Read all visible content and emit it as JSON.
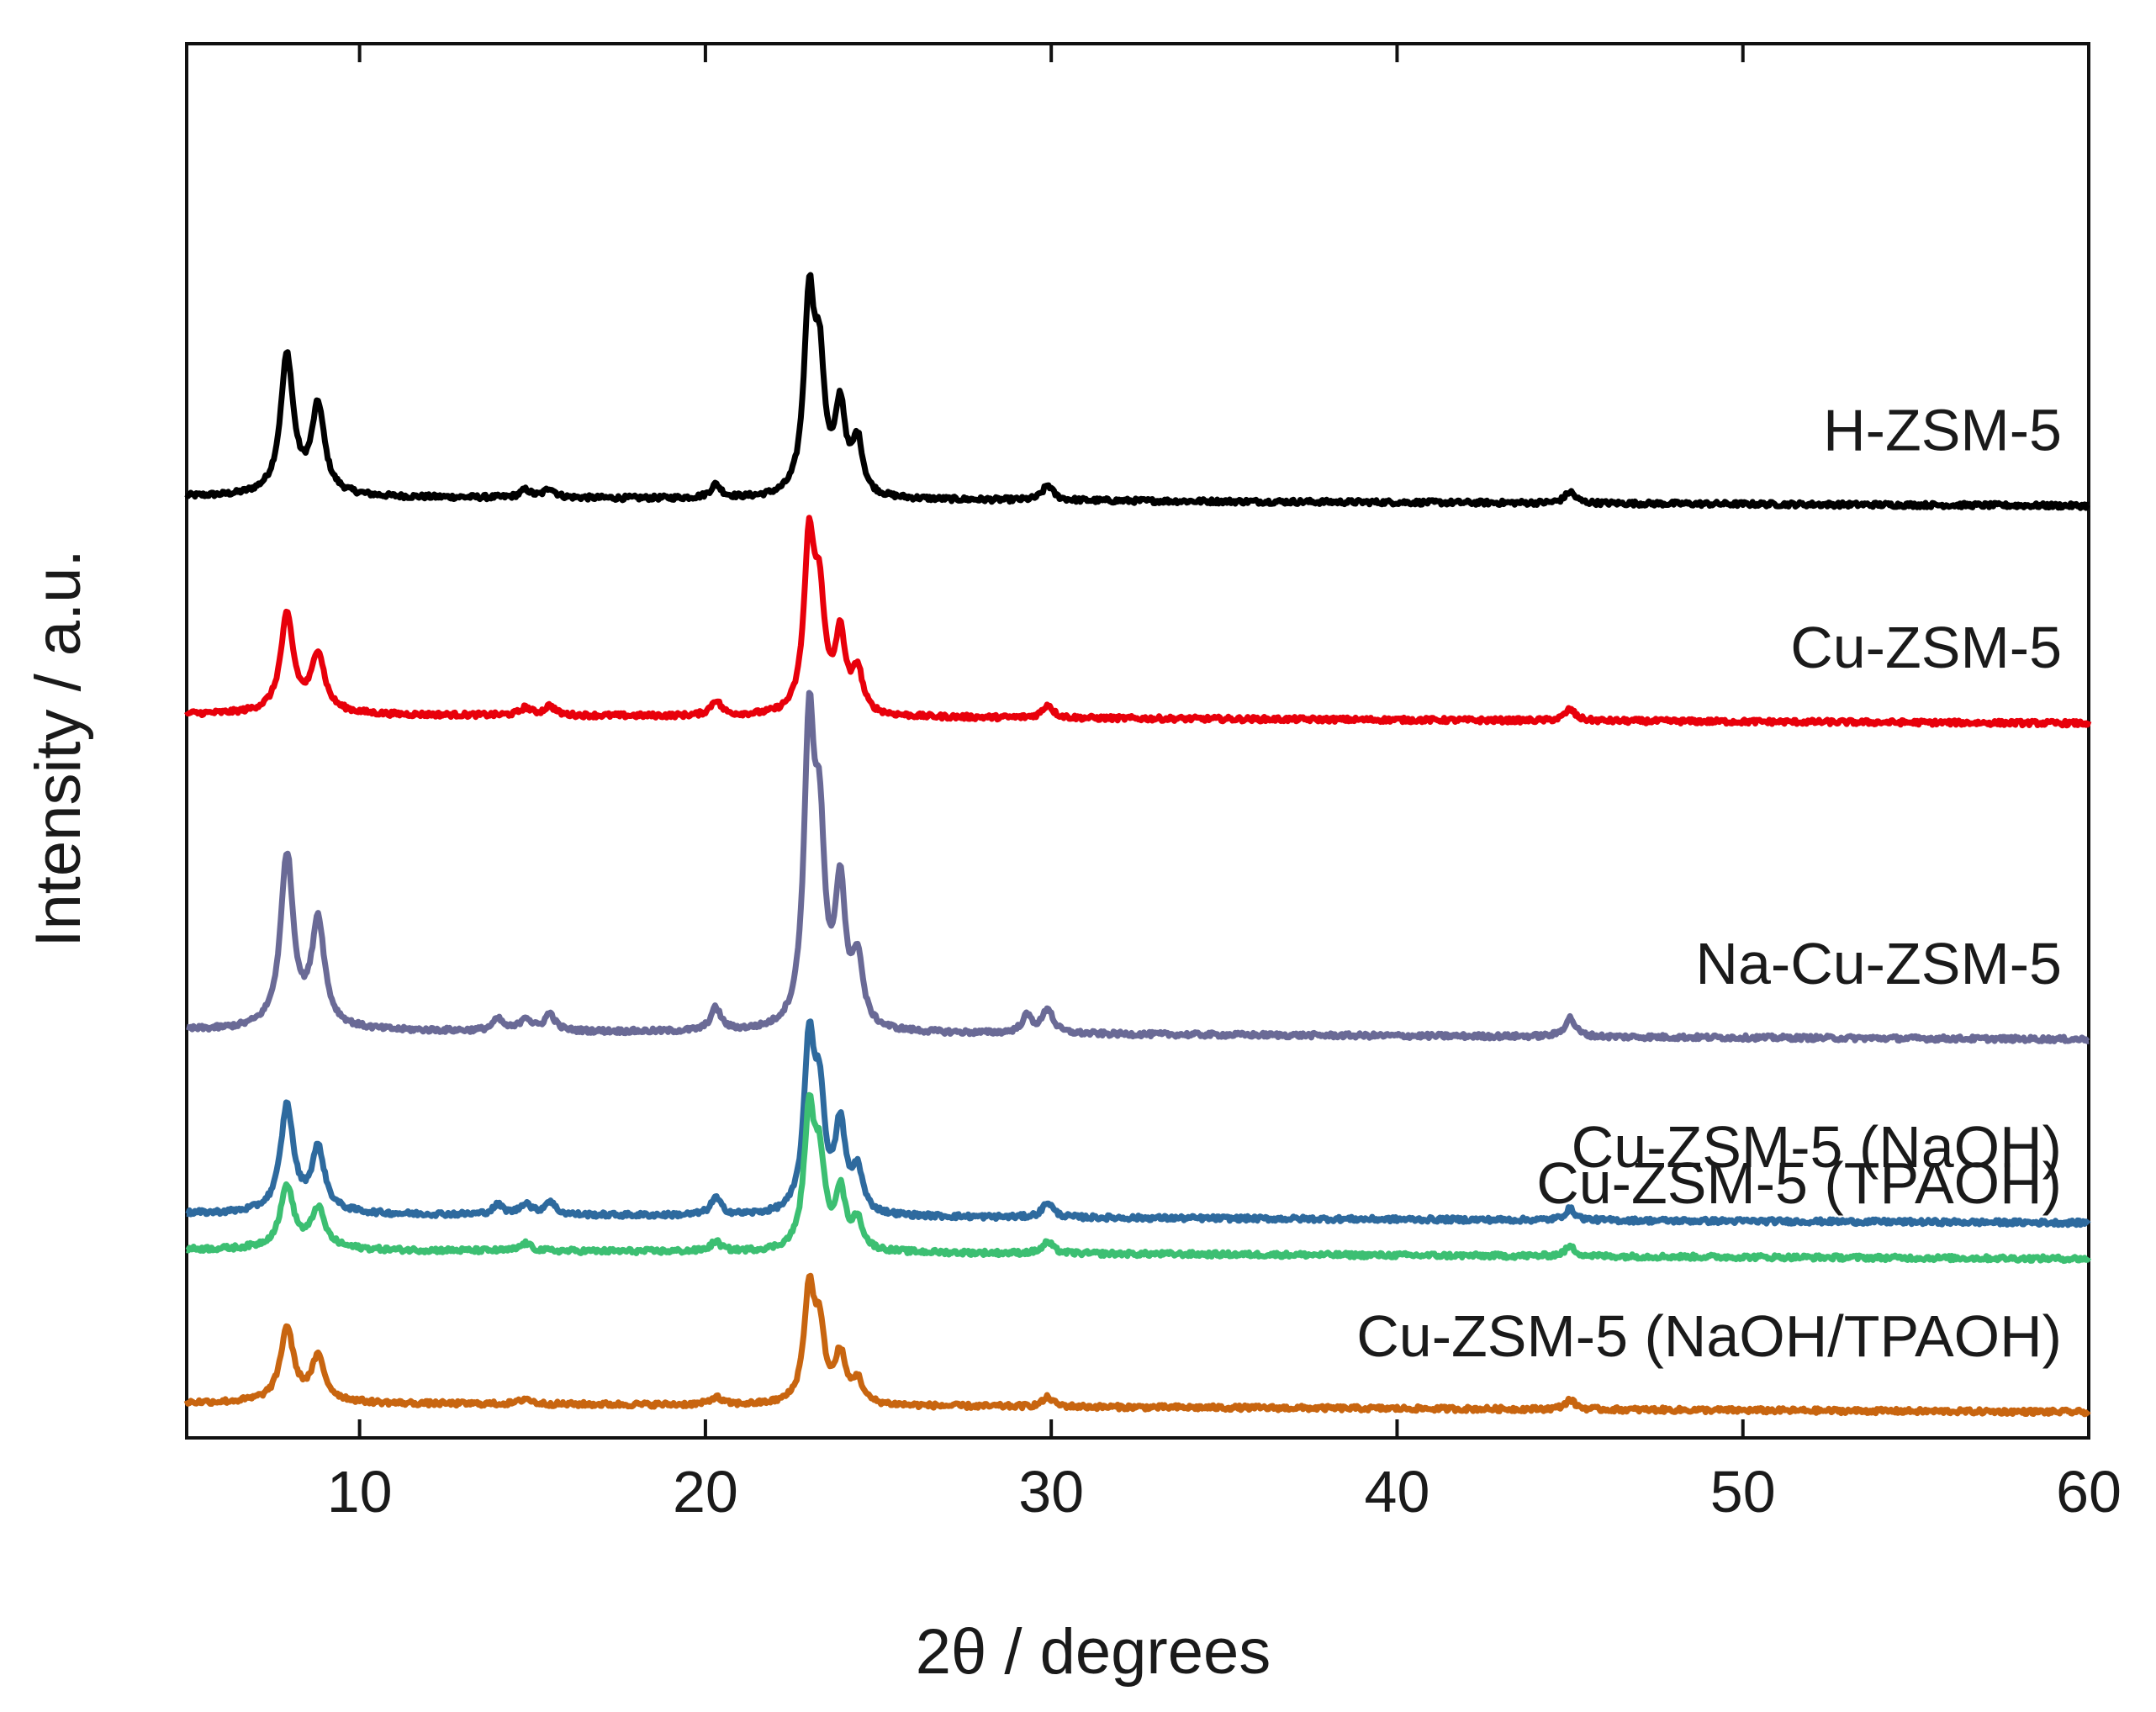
{
  "chart_data": {
    "type": "line",
    "title": "",
    "xlabel": "2θ / degrees",
    "ylabel": "Intensity / a.u.",
    "xlim": [
      5,
      60
    ],
    "xticks": [
      10,
      20,
      30,
      40,
      50,
      60
    ],
    "yticks_shown": false,
    "grid": false,
    "legend": "labels inline at right end of each trace",
    "note": "Stacked XRD patterns, vertically offset, arbitrary units (0 = baseline of each trace, 1 = tallest peak of H-ZSM-5).",
    "series": [
      {
        "name": "H-ZSM-5",
        "color": "#000000",
        "offset": 4.79,
        "peaks": [
          [
            7.9,
            0.72
          ],
          [
            8.8,
            0.45
          ],
          [
            14.8,
            0.04
          ],
          [
            15.5,
            0.05
          ],
          [
            20.3,
            0.07
          ],
          [
            23.0,
            1.0
          ],
          [
            23.3,
            0.62
          ],
          [
            23.9,
            0.45
          ],
          [
            24.4,
            0.28
          ],
          [
            29.9,
            0.08
          ],
          [
            45.0,
            0.06
          ]
        ]
      },
      {
        "name": "Cu-ZSM-5",
        "color": "#e8000b",
        "offset": 3.64,
        "peaks": [
          [
            7.9,
            0.5
          ],
          [
            8.8,
            0.3
          ],
          [
            14.8,
            0.04
          ],
          [
            15.5,
            0.05
          ],
          [
            20.3,
            0.08
          ],
          [
            23.0,
            0.88
          ],
          [
            23.3,
            0.55
          ],
          [
            23.9,
            0.4
          ],
          [
            24.4,
            0.22
          ],
          [
            29.9,
            0.07
          ],
          [
            45.0,
            0.06
          ]
        ]
      },
      {
        "name": "Na-Cu-ZSM-5",
        "color": "#6a6a96",
        "offset": 1.97,
        "peaks": [
          [
            7.9,
            0.9
          ],
          [
            8.8,
            0.55
          ],
          [
            14.0,
            0.06
          ],
          [
            14.8,
            0.07
          ],
          [
            15.5,
            0.09
          ],
          [
            20.3,
            0.12
          ],
          [
            23.0,
            1.52
          ],
          [
            23.3,
            0.9
          ],
          [
            23.9,
            0.72
          ],
          [
            24.4,
            0.35
          ],
          [
            29.3,
            0.09
          ],
          [
            29.9,
            0.13
          ],
          [
            45.0,
            0.1
          ]
        ]
      },
      {
        "name": "Cu-ZSM-5 (NaOH)",
        "color": "#2e6a9e",
        "offset": 1.0,
        "peaks": [
          [
            7.9,
            0.55
          ],
          [
            8.8,
            0.32
          ],
          [
            14.0,
            0.05
          ],
          [
            14.8,
            0.06
          ],
          [
            15.5,
            0.07
          ],
          [
            20.3,
            0.09
          ],
          [
            23.0,
            0.87
          ],
          [
            23.3,
            0.55
          ],
          [
            23.9,
            0.45
          ],
          [
            24.4,
            0.22
          ],
          [
            29.9,
            0.08
          ],
          [
            45.0,
            0.06
          ]
        ]
      },
      {
        "name": "Cu-ZSM-5 (TPAOH)",
        "color": "#3cbf72",
        "offset": 0.81,
        "peaks": [
          [
            7.9,
            0.32
          ],
          [
            8.8,
            0.2
          ],
          [
            14.8,
            0.04
          ],
          [
            20.3,
            0.05
          ],
          [
            23.0,
            0.7
          ],
          [
            23.3,
            0.42
          ],
          [
            23.9,
            0.3
          ],
          [
            24.4,
            0.15
          ],
          [
            29.9,
            0.06
          ],
          [
            45.0,
            0.05
          ]
        ]
      },
      {
        "name": "Cu-ZSM-5 (NaOH/TPAOH)",
        "color": "#c86510",
        "offset": 0.0,
        "peaks": [
          [
            7.9,
            0.38
          ],
          [
            8.8,
            0.22
          ],
          [
            14.8,
            0.03
          ],
          [
            20.3,
            0.04
          ],
          [
            23.0,
            0.58
          ],
          [
            23.3,
            0.35
          ],
          [
            23.9,
            0.25
          ],
          [
            24.4,
            0.12
          ],
          [
            29.9,
            0.05
          ],
          [
            45.0,
            0.05
          ]
        ]
      }
    ]
  }
}
